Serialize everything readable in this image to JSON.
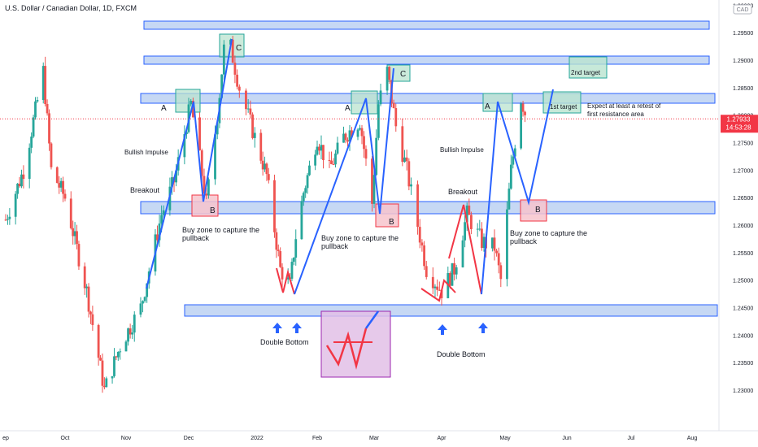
{
  "header": {
    "symbol_title": "U.S. Dollar / Canadian Dollar, 1D, FXCM",
    "currency_badge": "CAD"
  },
  "price_scale": {
    "ticks": [
      "1.30000",
      "1.29500",
      "1.29000",
      "1.28500",
      "1.28000",
      "1.27500",
      "1.27000",
      "1.26500",
      "1.26000",
      "1.25500",
      "1.25000",
      "1.24500",
      "1.24000",
      "1.23500",
      "1.23000"
    ],
    "last_price": "1.27933",
    "countdown": "14:53:28",
    "last_price_color": "#f23645"
  },
  "time_scale": {
    "labels": [
      "ep",
      "Oct",
      "Nov",
      "Dec",
      "2022",
      "Feb",
      "Mar",
      "Apr",
      "May",
      "Jun",
      "Jul",
      "Aug"
    ]
  },
  "annotations": {
    "wave_a1": "A",
    "wave_b1": "B",
    "wave_c1": "C",
    "wave_a2": "A",
    "wave_b2": "B",
    "wave_c2": "C",
    "wave_a3": "A",
    "wave_b3": "B",
    "bullish_impulse_1": "Bullish Impulse",
    "bullish_impulse_2": "Bullish Impulse",
    "breakout_1": "Breakout",
    "breakout_2": "Breakout",
    "buy_zone_1": [
      "Buy zone to capture the",
      "pullback"
    ],
    "buy_zone_2": [
      "Buy zone to capture the",
      "pullback"
    ],
    "buy_zone_3": [
      "Buy zone to capture the",
      "pullback"
    ],
    "double_bottom_1": "Double Bottom",
    "double_bottom_2": "Double Bottom",
    "first_target": "1st target",
    "second_target": "2nd target",
    "expect_note": [
      "Expect at least a retest of",
      "first resistance area"
    ]
  },
  "colors": {
    "bull_candle": "#26a69a",
    "bear_candle": "#ef5350",
    "zone_fill": "#c6d8f4",
    "zone_stroke": "#2962ff",
    "impulse_line": "#2962ff",
    "correction_line": "#f23645",
    "green_box": "#b9e3cf",
    "red_box": "#f7c4cc",
    "purple_box": "#e2bfe6"
  },
  "chart_data": {
    "type": "candlestick",
    "instrument": "U.S. Dollar / Canadian Dollar",
    "timeframe": "1D",
    "ylim": [
      1.2275,
      1.3005
    ],
    "last_price": 1.27933,
    "price_path": [
      [
        "2021-09-01",
        1.261
      ],
      [
        "2021-09-10",
        1.27
      ],
      [
        "2021-09-20",
        1.288
      ],
      [
        "2021-09-24",
        1.27
      ],
      [
        "2021-10-01",
        1.265
      ],
      [
        "2021-10-12",
        1.248
      ],
      [
        "2021-10-21",
        1.23
      ],
      [
        "2021-10-29",
        1.238
      ],
      [
        "2021-11-08",
        1.245
      ],
      [
        "2021-11-18",
        1.262
      ],
      [
        "2021-11-24",
        1.268
      ],
      [
        "2021-12-02",
        1.282
      ],
      [
        "2021-12-06",
        1.272
      ],
      [
        "2021-12-09",
        1.264
      ],
      [
        "2021-12-14",
        1.28
      ],
      [
        "2021-12-18",
        1.296
      ],
      [
        "2021-12-24",
        1.285
      ],
      [
        "2021-12-31",
        1.276
      ],
      [
        "2022-01-06",
        1.269
      ],
      [
        "2022-01-13",
        1.252
      ],
      [
        "2022-01-18",
        1.249
      ],
      [
        "2022-01-21",
        1.258
      ],
      [
        "2022-01-25",
        1.266
      ],
      [
        "2022-02-01",
        1.276
      ],
      [
        "2022-02-07",
        1.27
      ],
      [
        "2022-02-14",
        1.276
      ],
      [
        "2022-02-22",
        1.279
      ],
      [
        "2022-02-28",
        1.264
      ],
      [
        "2022-03-03",
        1.282
      ],
      [
        "2022-03-07",
        1.288
      ],
      [
        "2022-03-11",
        1.278
      ],
      [
        "2022-03-16",
        1.27
      ],
      [
        "2022-03-21",
        1.26
      ],
      [
        "2022-03-25",
        1.252
      ],
      [
        "2022-04-01",
        1.248
      ],
      [
        "2022-04-07",
        1.252
      ],
      [
        "2022-04-13",
        1.262
      ],
      [
        "2022-04-20",
        1.257
      ],
      [
        "2022-04-26",
        1.256
      ],
      [
        "2022-04-29",
        1.25
      ],
      [
        "2022-05-04",
        1.27
      ],
      [
        "2022-05-09",
        1.283
      ],
      [
        "2022-05-12",
        1.27933
      ]
    ],
    "zones": [
      {
        "from": 1.2955,
        "to": 1.2968
      },
      {
        "from": 1.2893,
        "to": 1.2903
      },
      {
        "from": 1.2828,
        "to": 1.284
      },
      {
        "from": 1.2635,
        "to": 1.265
      },
      {
        "from": 1.2455,
        "to": 1.2468
      }
    ],
    "projection": [
      [
        "2022-05-12",
        1.283
      ],
      [
        "2022-05-29",
        1.265
      ],
      [
        "2022-06-16",
        1.2845
      ]
    ]
  }
}
